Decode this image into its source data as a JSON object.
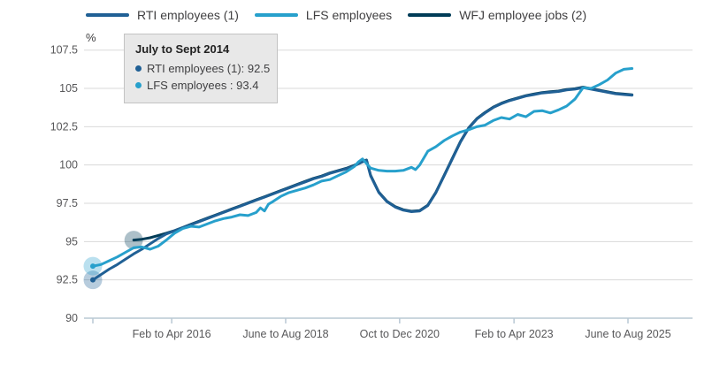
{
  "chart": {
    "unit_label": "%",
    "legend": [
      {
        "label": "RTI employees (1)",
        "color": "#206095"
      },
      {
        "label": "LFS employees",
        "color": "#27a0cc"
      },
      {
        "label": "WFJ employee jobs (2)",
        "color": "#003c57"
      }
    ],
    "tooltip": {
      "title": "July to Sept 2014",
      "items": [
        {
          "text": "RTI employees (1): 92.5",
          "color": "#206095"
        },
        {
          "text": "LFS employees : 93.4",
          "color": "#27a0cc"
        }
      ]
    },
    "colors": {
      "grid": "#d9d9d9",
      "axis": "#b9c8d4",
      "tick_text": "#58585a",
      "unit_text": "#414042"
    }
  },
  "chart_data": {
    "type": "line",
    "title": "",
    "xlabel": "",
    "ylabel": "%",
    "x_unit": "months since July to Sept 2014",
    "ylim": [
      90,
      107.5
    ],
    "xlim_months": [
      0,
      132
    ],
    "grid": true,
    "legend_position": "top",
    "y_ticks": [
      90,
      92.5,
      95,
      97.5,
      100,
      102.5,
      105,
      107.5
    ],
    "x_ticks": [
      {
        "t": 0,
        "label": ""
      },
      {
        "t": 19.3,
        "label": "Feb to Apr 2016"
      },
      {
        "t": 47.2,
        "label": "June to Aug 2018"
      },
      {
        "t": 75.1,
        "label": "Oct to Dec 2020"
      },
      {
        "t": 103.1,
        "label": "Feb to Apr 2023"
      },
      {
        "t": 131,
        "label": "June to Aug 2025"
      }
    ],
    "series": [
      {
        "name": "RTI employees (1)",
        "color": "#206095",
        "width": 3,
        "points": [
          [
            0,
            92.5
          ],
          [
            2,
            92.85
          ],
          [
            4,
            93.2
          ],
          [
            6,
            93.5
          ],
          [
            8,
            93.85
          ],
          [
            10,
            94.2
          ],
          [
            12,
            94.5
          ],
          [
            14,
            94.85
          ],
          [
            16,
            95.2
          ],
          [
            18,
            95.5
          ],
          [
            20,
            95.7
          ],
          [
            22,
            95.9
          ],
          [
            24,
            96.1
          ],
          [
            26,
            96.3
          ],
          [
            28,
            96.5
          ],
          [
            30,
            96.7
          ],
          [
            32,
            96.9
          ],
          [
            34,
            97.1
          ],
          [
            36,
            97.3
          ],
          [
            38,
            97.5
          ],
          [
            40,
            97.7
          ],
          [
            42,
            97.9
          ],
          [
            44,
            98.1
          ],
          [
            46,
            98.3
          ],
          [
            48,
            98.5
          ],
          [
            50,
            98.7
          ],
          [
            52,
            98.9
          ],
          [
            54,
            99.1
          ],
          [
            56,
            99.25
          ],
          [
            58,
            99.45
          ],
          [
            60,
            99.6
          ],
          [
            62,
            99.75
          ],
          [
            64,
            99.95
          ],
          [
            66,
            100.2
          ],
          [
            67,
            100.3
          ],
          [
            68,
            99.3
          ],
          [
            70,
            98.2
          ],
          [
            72,
            97.6
          ],
          [
            74,
            97.25
          ],
          [
            76,
            97.05
          ],
          [
            78,
            96.95
          ],
          [
            80,
            97.0
          ],
          [
            82,
            97.35
          ],
          [
            84,
            98.2
          ],
          [
            86,
            99.3
          ],
          [
            88,
            100.4
          ],
          [
            90,
            101.5
          ],
          [
            92,
            102.4
          ],
          [
            94,
            103.0
          ],
          [
            96,
            103.4
          ],
          [
            98,
            103.75
          ],
          [
            100,
            104.0
          ],
          [
            102,
            104.2
          ],
          [
            104,
            104.35
          ],
          [
            106,
            104.5
          ],
          [
            108,
            104.6
          ],
          [
            110,
            104.7
          ],
          [
            112,
            104.75
          ],
          [
            114,
            104.8
          ],
          [
            116,
            104.9
          ],
          [
            118,
            104.95
          ],
          [
            120,
            105.05
          ],
          [
            122,
            104.95
          ],
          [
            124,
            104.85
          ],
          [
            126,
            104.75
          ],
          [
            128,
            104.65
          ],
          [
            130,
            104.6
          ],
          [
            132,
            104.55
          ]
        ]
      },
      {
        "name": "LFS employees",
        "color": "#27a0cc",
        "width": 3,
        "points": [
          [
            0,
            93.4
          ],
          [
            2,
            93.5
          ],
          [
            4,
            93.75
          ],
          [
            6,
            94.0
          ],
          [
            8,
            94.3
          ],
          [
            10,
            94.6
          ],
          [
            12,
            94.65
          ],
          [
            14,
            94.5
          ],
          [
            16,
            94.7
          ],
          [
            18,
            95.1
          ],
          [
            20,
            95.55
          ],
          [
            22,
            95.85
          ],
          [
            24,
            96.0
          ],
          [
            26,
            95.95
          ],
          [
            28,
            96.15
          ],
          [
            30,
            96.35
          ],
          [
            32,
            96.5
          ],
          [
            34,
            96.6
          ],
          [
            36,
            96.75
          ],
          [
            38,
            96.7
          ],
          [
            40,
            96.9
          ],
          [
            41,
            97.2
          ],
          [
            42,
            97.0
          ],
          [
            43,
            97.45
          ],
          [
            44,
            97.6
          ],
          [
            46,
            97.95
          ],
          [
            48,
            98.2
          ],
          [
            50,
            98.35
          ],
          [
            52,
            98.5
          ],
          [
            54,
            98.7
          ],
          [
            56,
            98.95
          ],
          [
            58,
            99.05
          ],
          [
            60,
            99.3
          ],
          [
            62,
            99.55
          ],
          [
            64,
            99.9
          ],
          [
            65,
            100.2
          ],
          [
            66,
            100.4
          ],
          [
            68,
            99.8
          ],
          [
            70,
            99.65
          ],
          [
            72,
            99.6
          ],
          [
            74,
            99.6
          ],
          [
            76,
            99.65
          ],
          [
            78,
            99.85
          ],
          [
            79,
            99.7
          ],
          [
            80,
            100.0
          ],
          [
            82,
            100.9
          ],
          [
            84,
            101.2
          ],
          [
            86,
            101.6
          ],
          [
            88,
            101.9
          ],
          [
            90,
            102.15
          ],
          [
            92,
            102.3
          ],
          [
            94,
            102.5
          ],
          [
            96,
            102.6
          ],
          [
            98,
            102.9
          ],
          [
            100,
            103.1
          ],
          [
            102,
            103.0
          ],
          [
            104,
            103.3
          ],
          [
            106,
            103.15
          ],
          [
            108,
            103.5
          ],
          [
            110,
            103.55
          ],
          [
            112,
            103.4
          ],
          [
            114,
            103.6
          ],
          [
            116,
            103.85
          ],
          [
            118,
            104.3
          ],
          [
            120,
            105.05
          ],
          [
            122,
            105.0
          ],
          [
            124,
            105.25
          ],
          [
            126,
            105.55
          ],
          [
            128,
            106.0
          ],
          [
            130,
            106.25
          ],
          [
            132,
            106.3
          ]
        ]
      },
      {
        "name": "WFJ employee jobs (2)",
        "color": "#003c57",
        "width": 3,
        "points": [
          [
            10,
            95.1
          ],
          [
            12,
            95.15
          ],
          [
            14,
            95.25
          ],
          [
            16,
            95.4
          ],
          [
            18,
            95.55
          ],
          [
            20,
            95.72
          ],
          [
            22,
            95.92
          ],
          [
            24,
            96.13
          ],
          [
            26,
            96.33
          ],
          [
            28,
            96.53
          ],
          [
            30,
            96.73
          ],
          [
            32,
            96.93
          ],
          [
            34,
            97.13
          ],
          [
            36,
            97.33
          ],
          [
            38,
            97.53
          ],
          [
            40,
            97.73
          ],
          [
            42,
            97.93
          ],
          [
            44,
            98.13
          ],
          [
            46,
            98.33
          ],
          [
            48,
            98.53
          ],
          [
            50,
            98.73
          ],
          [
            52,
            98.93
          ],
          [
            54,
            99.13
          ],
          [
            56,
            99.28
          ],
          [
            58,
            99.48
          ],
          [
            60,
            99.63
          ],
          [
            62,
            99.78
          ],
          [
            64,
            99.98
          ],
          [
            66,
            100.23
          ],
          [
            67,
            100.33
          ],
          [
            68,
            99.33
          ],
          [
            70,
            98.23
          ],
          [
            72,
            97.63
          ],
          [
            74,
            97.28
          ],
          [
            76,
            97.08
          ],
          [
            78,
            96.98
          ],
          [
            80,
            97.03
          ],
          [
            82,
            97.38
          ],
          [
            84,
            98.23
          ],
          [
            86,
            99.33
          ],
          [
            88,
            100.43
          ],
          [
            90,
            101.53
          ],
          [
            92,
            102.43
          ],
          [
            94,
            103.03
          ],
          [
            96,
            103.43
          ],
          [
            98,
            103.78
          ],
          [
            100,
            104.03
          ],
          [
            102,
            104.23
          ],
          [
            104,
            104.38
          ],
          [
            106,
            104.53
          ],
          [
            108,
            104.63
          ],
          [
            110,
            104.73
          ],
          [
            112,
            104.78
          ],
          [
            114,
            104.83
          ],
          [
            116,
            104.93
          ],
          [
            118,
            104.98
          ],
          [
            120,
            105.08
          ],
          [
            122,
            104.98
          ],
          [
            124,
            104.88
          ],
          [
            126,
            104.78
          ],
          [
            128,
            104.68
          ],
          [
            130,
            104.63
          ],
          [
            132,
            104.58
          ]
        ]
      }
    ],
    "draw_order": [
      2,
      0,
      1
    ],
    "highlighted_points": [
      {
        "series": "RTI employees (1)",
        "t": 0,
        "value": 92.5,
        "color": "#206095"
      },
      {
        "series": "LFS employees",
        "t": 0,
        "value": 93.4,
        "color": "#27a0cc"
      },
      {
        "series": "WFJ employee jobs (2)",
        "t": 10,
        "value": 95.1,
        "color": "#003c57"
      }
    ]
  }
}
